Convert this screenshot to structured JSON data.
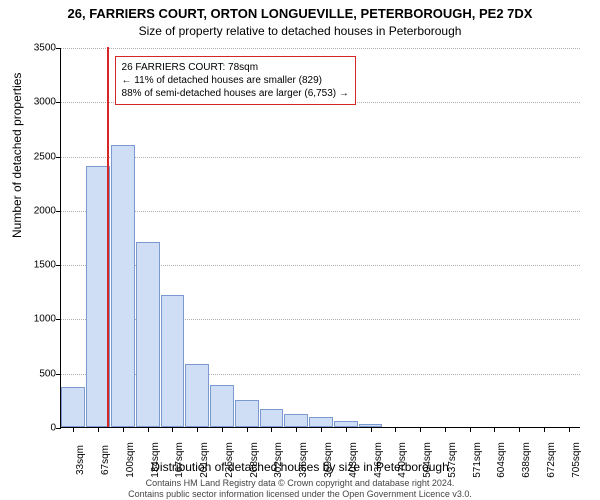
{
  "title_main": "26, FARRIERS COURT, ORTON LONGUEVILLE, PETERBOROUGH, PE2 7DX",
  "title_sub": "Size of property relative to detached houses in Peterborough",
  "y_axis_label": "Number of detached properties",
  "x_axis_label": "Distribution of detached houses by size in Peterborough",
  "footer_line1": "Contains HM Land Registry data © Crown copyright and database right 2024.",
  "footer_line2": "Contains public sector information licensed under the Open Government Licence v3.0.",
  "chart": {
    "type": "histogram",
    "ylim": [
      0,
      3500
    ],
    "ytick_step": 500,
    "x_categories": [
      "33sqm",
      "67sqm",
      "100sqm",
      "134sqm",
      "167sqm",
      "201sqm",
      "235sqm",
      "268sqm",
      "302sqm",
      "336sqm",
      "369sqm",
      "403sqm",
      "436sqm",
      "470sqm",
      "504sqm",
      "537sqm",
      "571sqm",
      "604sqm",
      "638sqm",
      "672sqm",
      "705sqm"
    ],
    "bar_values": [
      370,
      2400,
      2600,
      1700,
      1220,
      580,
      390,
      250,
      170,
      120,
      90,
      60,
      30,
      0,
      0,
      0,
      0,
      0,
      0,
      0,
      0
    ],
    "bar_fill": "#cfddf5",
    "bar_border": "#7a9ad1",
    "background_color": "#ffffff",
    "grid_color": "#b0b0b0",
    "axis_color": "#000000",
    "marker_value_sqm": 78,
    "marker_color": "#d62728",
    "info_box_border": "#d62728",
    "info_box_lines": [
      "26 FARRIERS COURT: 78sqm",
      "← 11% of detached houses are smaller (829)",
      "88% of semi-detached houses are larger (6,753) →"
    ],
    "tick_font_size": 10,
    "label_font_size": 12,
    "title_font_size": 13
  }
}
